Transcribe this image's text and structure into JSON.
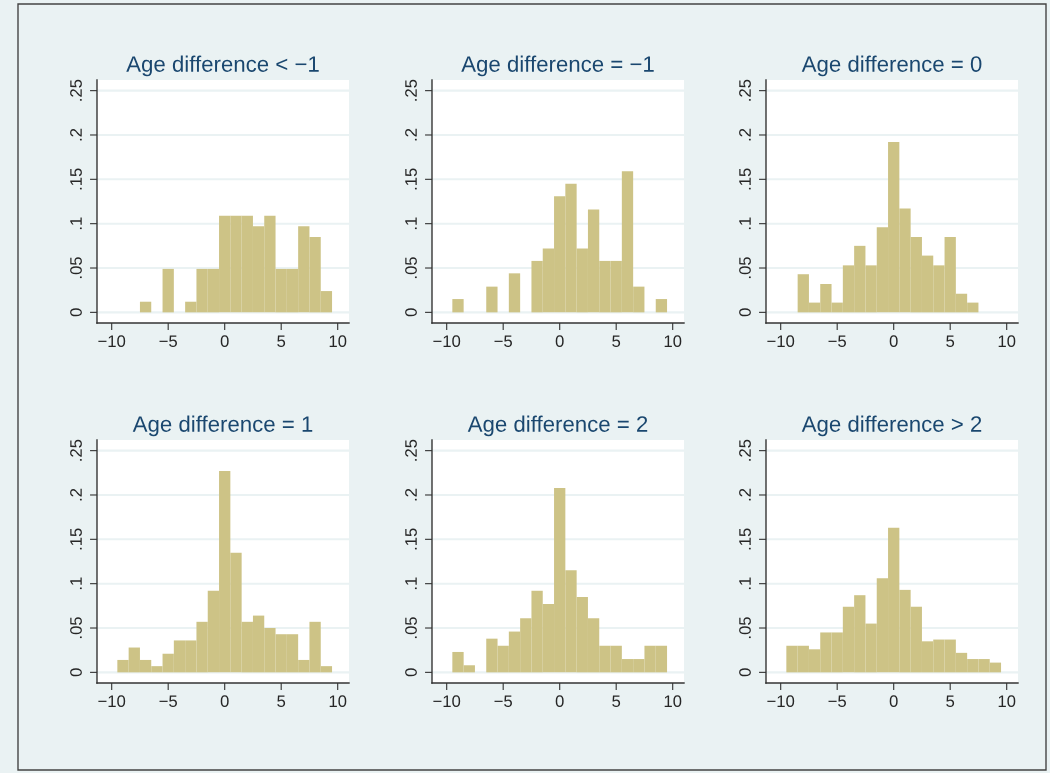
{
  "chart_data": [
    {
      "type": "histogram",
      "title": "Age difference < −1",
      "color": "#cdc386",
      "grid": "y",
      "xlim": [
        -11.3,
        11
      ],
      "ylim": [
        -0.012,
        0.262
      ],
      "xticks": [
        -10,
        -5,
        0,
        5,
        10
      ],
      "yticks": [
        0,
        {
          "value": 0.05,
          "label": ".05"
        },
        {
          "value": 0.1,
          "label": ".1"
        },
        {
          "value": 0.15,
          "label": ".15"
        },
        {
          "value": 0.2,
          "label": ".2"
        },
        {
          "value": 0.25,
          "label": ".25"
        }
      ],
      "bins": [
        -9.5,
        -8.5,
        -7.5,
        -6.5,
        -5.5,
        -4.5,
        -3.5,
        -2.5,
        -1.5,
        -0.5,
        0.5,
        1.5,
        2.5,
        3.5,
        4.5,
        5.5,
        6.5,
        7.5,
        8.5,
        9.5
      ],
      "values": [
        0,
        0,
        0.012,
        0,
        0.049,
        0,
        0.012,
        0.049,
        0.049,
        0.109,
        0.109,
        0.109,
        0.097,
        0.109,
        0.049,
        0.049,
        0.097,
        0.085,
        0.024
      ]
    },
    {
      "type": "histogram",
      "title": "Age difference = −1",
      "color": "#cdc386",
      "grid": "y",
      "xlim": [
        -11.3,
        11
      ],
      "ylim": [
        -0.012,
        0.262
      ],
      "xticks": [
        -10,
        -5,
        0,
        5,
        10
      ],
      "yticks": [
        0,
        {
          "value": 0.05,
          "label": ".05"
        },
        {
          "value": 0.1,
          "label": ".1"
        },
        {
          "value": 0.15,
          "label": ".15"
        },
        {
          "value": 0.2,
          "label": ".2"
        },
        {
          "value": 0.25,
          "label": ".25"
        }
      ],
      "bins": [
        -9.5,
        -8.5,
        -7.5,
        -6.5,
        -5.5,
        -4.5,
        -3.5,
        -2.5,
        -1.5,
        -0.5,
        0.5,
        1.5,
        2.5,
        3.5,
        4.5,
        5.5,
        6.5,
        7.5,
        8.5,
        9.5
      ],
      "values": [
        0.015,
        0,
        0,
        0.029,
        0,
        0.044,
        0,
        0.058,
        0.072,
        0.131,
        0.145,
        0.072,
        0.116,
        0.058,
        0.058,
        0.159,
        0.029,
        0,
        0.015
      ]
    },
    {
      "type": "histogram",
      "title": "Age difference = 0",
      "color": "#cdc386",
      "grid": "y",
      "xlim": [
        -11.3,
        11
      ],
      "ylim": [
        -0.012,
        0.262
      ],
      "xticks": [
        -10,
        -5,
        0,
        5,
        10
      ],
      "yticks": [
        0,
        {
          "value": 0.05,
          "label": ".05"
        },
        {
          "value": 0.1,
          "label": ".1"
        },
        {
          "value": 0.15,
          "label": ".15"
        },
        {
          "value": 0.2,
          "label": ".2"
        },
        {
          "value": 0.25,
          "label": ".25"
        }
      ],
      "bins": [
        -9.5,
        -8.5,
        -7.5,
        -6.5,
        -5.5,
        -4.5,
        -3.5,
        -2.5,
        -1.5,
        -0.5,
        0.5,
        1.5,
        2.5,
        3.5,
        4.5,
        5.5,
        6.5,
        7.5,
        8.5,
        9.5
      ],
      "values": [
        0,
        0.043,
        0.011,
        0.032,
        0.011,
        0.053,
        0.075,
        0.053,
        0.096,
        0.192,
        0.117,
        0.085,
        0.064,
        0.053,
        0.085,
        0.021,
        0.011,
        0,
        0
      ]
    },
    {
      "type": "histogram",
      "title": "Age difference = 1",
      "color": "#cdc386",
      "grid": "y",
      "xlim": [
        -11.3,
        11
      ],
      "ylim": [
        -0.012,
        0.262
      ],
      "xticks": [
        -10,
        -5,
        0,
        5,
        10
      ],
      "yticks": [
        0,
        {
          "value": 0.05,
          "label": ".05"
        },
        {
          "value": 0.1,
          "label": ".1"
        },
        {
          "value": 0.15,
          "label": ".15"
        },
        {
          "value": 0.2,
          "label": ".2"
        },
        {
          "value": 0.25,
          "label": ".25"
        }
      ],
      "bins": [
        -9.5,
        -8.5,
        -7.5,
        -6.5,
        -5.5,
        -4.5,
        -3.5,
        -2.5,
        -1.5,
        -0.5,
        0.5,
        1.5,
        2.5,
        3.5,
        4.5,
        5.5,
        6.5,
        7.5,
        8.5,
        9.5
      ],
      "values": [
        0.014,
        0.028,
        0.014,
        0.007,
        0.021,
        0.036,
        0.036,
        0.057,
        0.092,
        0.227,
        0.135,
        0.057,
        0.064,
        0.05,
        0.043,
        0.043,
        0.014,
        0.057,
        0.007
      ]
    },
    {
      "type": "histogram",
      "title": "Age difference = 2",
      "color": "#cdc386",
      "grid": "y",
      "xlim": [
        -11.3,
        11
      ],
      "ylim": [
        -0.012,
        0.262
      ],
      "xticks": [
        -10,
        -5,
        0,
        5,
        10
      ],
      "yticks": [
        0,
        {
          "value": 0.05,
          "label": ".05"
        },
        {
          "value": 0.1,
          "label": ".1"
        },
        {
          "value": 0.15,
          "label": ".15"
        },
        {
          "value": 0.2,
          "label": ".2"
        },
        {
          "value": 0.25,
          "label": ".25"
        }
      ],
      "bins": [
        -9.5,
        -8.5,
        -7.5,
        -6.5,
        -5.5,
        -4.5,
        -3.5,
        -2.5,
        -1.5,
        -0.5,
        0.5,
        1.5,
        2.5,
        3.5,
        4.5,
        5.5,
        6.5,
        7.5,
        8.5,
        9.5
      ],
      "values": [
        0.023,
        0.008,
        0,
        0.038,
        0.03,
        0.046,
        0.061,
        0.092,
        0.077,
        0.208,
        0.115,
        0.085,
        0.061,
        0.03,
        0.03,
        0.015,
        0.015,
        0.03,
        0.03
      ]
    },
    {
      "type": "histogram",
      "title": "Age difference > 2",
      "color": "#cdc386",
      "grid": "y",
      "xlim": [
        -11.3,
        11
      ],
      "ylim": [
        -0.012,
        0.262
      ],
      "xticks": [
        -10,
        -5,
        0,
        5,
        10
      ],
      "yticks": [
        0,
        {
          "value": 0.05,
          "label": ".05"
        },
        {
          "value": 0.1,
          "label": ".1"
        },
        {
          "value": 0.15,
          "label": ".15"
        },
        {
          "value": 0.2,
          "label": ".2"
        },
        {
          "value": 0.25,
          "label": ".25"
        }
      ],
      "bins": [
        -9.5,
        -8.5,
        -7.5,
        -6.5,
        -5.5,
        -4.5,
        -3.5,
        -2.5,
        -1.5,
        -0.5,
        0.5,
        1.5,
        2.5,
        3.5,
        4.5,
        5.5,
        6.5,
        7.5,
        8.5,
        9.5
      ],
      "values": [
        0.03,
        0.03,
        0.026,
        0.045,
        0.045,
        0.074,
        0.087,
        0.055,
        0.106,
        0.163,
        0.093,
        0.074,
        0.035,
        0.037,
        0.037,
        0.022,
        0.015,
        0.015,
        0.011
      ]
    }
  ]
}
